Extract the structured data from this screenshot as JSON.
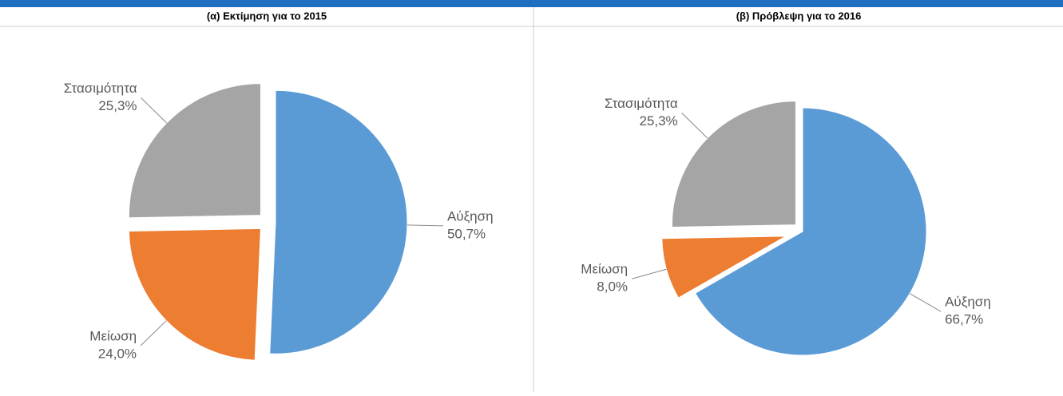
{
  "chart_data": [
    {
      "type": "pie",
      "title": "(α) Εκτίμηση για το 2015",
      "categories": [
        "Αύξηση",
        "Μείωση",
        "Στασιμότητα"
      ],
      "values": [
        50.7,
        24.0,
        25.3
      ],
      "value_labels": [
        "50,7%",
        "24,0%",
        "25,3%"
      ],
      "colors": [
        "#5b9bd5",
        "#ed7d31",
        "#a5a5a5"
      ]
    },
    {
      "type": "pie",
      "title": "(β) Πρόβλεψη για το 2016",
      "categories": [
        "Αύξηση",
        "Μείωση",
        "Στασιμότητα"
      ],
      "values": [
        66.7,
        8.0,
        25.3
      ],
      "value_labels": [
        "66,7%",
        "8,0%",
        "25,3%"
      ],
      "colors": [
        "#5b9bd5",
        "#ed7d31",
        "#a5a5a5"
      ]
    }
  ]
}
